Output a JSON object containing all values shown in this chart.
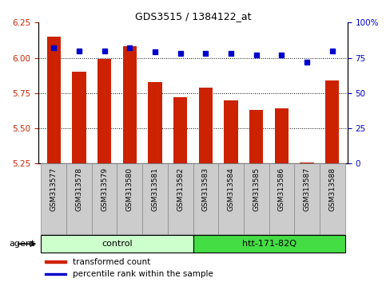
{
  "title": "GDS3515 / 1384122_at",
  "samples": [
    "GSM313577",
    "GSM313578",
    "GSM313579",
    "GSM313580",
    "GSM313581",
    "GSM313582",
    "GSM313583",
    "GSM313584",
    "GSM313585",
    "GSM313586",
    "GSM313587",
    "GSM313588"
  ],
  "red_values": [
    6.15,
    5.9,
    5.99,
    6.08,
    5.83,
    5.72,
    5.79,
    5.7,
    5.63,
    5.64,
    5.26,
    5.84
  ],
  "blue_values": [
    82,
    80,
    80,
    82,
    79,
    78,
    78,
    78,
    77,
    77,
    72,
    80
  ],
  "ylim_left": [
    5.25,
    6.25
  ],
  "ylim_right": [
    0,
    100
  ],
  "yticks_left": [
    5.25,
    5.5,
    5.75,
    6.0,
    6.25
  ],
  "yticks_right": [
    0,
    25,
    50,
    75,
    100
  ],
  "ytick_labels_right": [
    "0",
    "25",
    "50",
    "75",
    "100%"
  ],
  "bar_color": "#cc2200",
  "dot_color": "#0000cc",
  "bar_bottom": 5.25,
  "groups": [
    {
      "label": "control",
      "start": 0,
      "end": 5,
      "color": "#ccffcc",
      "edge_color": "#44aa44"
    },
    {
      "label": "htt-171-82Q",
      "start": 6,
      "end": 11,
      "color": "#44dd44",
      "edge_color": "#228822"
    }
  ],
  "agent_label": "agent",
  "legend_items": [
    {
      "color": "#cc2200",
      "label": "transformed count"
    },
    {
      "color": "#0000cc",
      "label": "percentile rank within the sample"
    }
  ],
  "grid_color": "black",
  "tick_cell_color": "#cccccc",
  "tick_cell_edge": "#888888",
  "background_color": "#ffffff"
}
